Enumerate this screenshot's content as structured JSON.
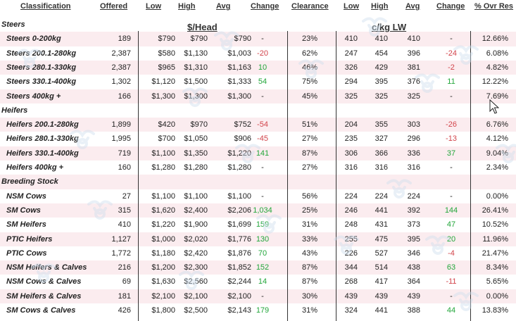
{
  "headers": {
    "classification": "Classification",
    "offered": "Offered",
    "low": "Low",
    "high": "High",
    "avg": "Avg",
    "change": "Change",
    "clearance": "Clearance",
    "low2": "Low",
    "high2": "High",
    "avg2": "Avg",
    "change2": "Change",
    "ovr_res": "% Ovr Res"
  },
  "units": {
    "head": "$/Head",
    "lw": "c/kg LW"
  },
  "rows": [
    {
      "type": "section",
      "label": "Steers"
    },
    {
      "type": "data",
      "name": "Steers 0-200kg",
      "offered": "189",
      "low": "$790",
      "high": "$790",
      "avg": "$790",
      "change": "-",
      "change_sign": "none",
      "clearance": "23%",
      "low2": "410",
      "high2": "410",
      "avg2": "410",
      "change2": "-",
      "change2_sign": "none",
      "ovr": "12.66%"
    },
    {
      "type": "data",
      "name": "Steers 200.1-280kg",
      "offered": "2,387",
      "low": "$580",
      "high": "$1,130",
      "avg": "$1,003",
      "change": "-20",
      "change_sign": "neg",
      "clearance": "62%",
      "low2": "247",
      "high2": "454",
      "avg2": "396",
      "change2": "-24",
      "change2_sign": "neg",
      "ovr": "6.08%"
    },
    {
      "type": "data",
      "name": "Steers 280.1-330kg",
      "offered": "2,387",
      "low": "$965",
      "high": "$1,310",
      "avg": "$1,163",
      "change": "10",
      "change_sign": "pos",
      "clearance": "46%",
      "low2": "326",
      "high2": "429",
      "avg2": "381",
      "change2": "-2",
      "change2_sign": "neg",
      "ovr": "4.82%"
    },
    {
      "type": "data",
      "name": "Steers 330.1-400kg",
      "offered": "1,302",
      "low": "$1,120",
      "high": "$1,500",
      "avg": "$1,333",
      "change": "54",
      "change_sign": "pos",
      "clearance": "75%",
      "low2": "294",
      "high2": "395",
      "avg2": "376",
      "change2": "11",
      "change2_sign": "pos",
      "ovr": "12.22%"
    },
    {
      "type": "data",
      "name": "Steers 400kg +",
      "offered": "166",
      "low": "$1,300",
      "high": "$1,300",
      "avg": "$1,300",
      "change": "-",
      "change_sign": "none",
      "clearance": "45%",
      "low2": "325",
      "high2": "325",
      "avg2": "325",
      "change2": "-",
      "change2_sign": "none",
      "ovr": "7.69%"
    },
    {
      "type": "section",
      "label": "Heifers"
    },
    {
      "type": "data",
      "name": "Heifers 200.1-280kg",
      "offered": "1,899",
      "low": "$420",
      "high": "$970",
      "avg": "$752",
      "change": "-54",
      "change_sign": "neg",
      "clearance": "51%",
      "low2": "204",
      "high2": "355",
      "avg2": "303",
      "change2": "-26",
      "change2_sign": "neg",
      "ovr": "6.76%"
    },
    {
      "type": "data",
      "name": "Heifers 280.1-330kg",
      "offered": "1,995",
      "low": "$700",
      "high": "$1,050",
      "avg": "$906",
      "change": "-45",
      "change_sign": "neg",
      "clearance": "27%",
      "low2": "235",
      "high2": "327",
      "avg2": "296",
      "change2": "-13",
      "change2_sign": "neg",
      "ovr": "4.12%"
    },
    {
      "type": "data",
      "name": "Heifers 330.1-400kg",
      "offered": "719",
      "low": "$1,100",
      "high": "$1,350",
      "avg": "$1,220",
      "change": "141",
      "change_sign": "pos",
      "clearance": "87%",
      "low2": "306",
      "high2": "366",
      "avg2": "336",
      "change2": "37",
      "change2_sign": "pos",
      "ovr": "9.04%"
    },
    {
      "type": "data",
      "name": "Heifers 400kg +",
      "offered": "160",
      "low": "$1,280",
      "high": "$1,280",
      "avg": "$1,280",
      "change": "-",
      "change_sign": "none",
      "clearance": "27%",
      "low2": "316",
      "high2": "316",
      "avg2": "316",
      "change2": "-",
      "change2_sign": "none",
      "ovr": "2.34%"
    },
    {
      "type": "section",
      "label": "Breeding Stock"
    },
    {
      "type": "data",
      "name": "NSM Cows",
      "offered": "27",
      "low": "$1,100",
      "high": "$1,100",
      "avg": "$1,100",
      "change": "-",
      "change_sign": "none",
      "clearance": "56%",
      "low2": "224",
      "high2": "224",
      "avg2": "224",
      "change2": "-",
      "change2_sign": "none",
      "ovr": "0.00%"
    },
    {
      "type": "data",
      "name": "SM Cows",
      "offered": "315",
      "low": "$1,620",
      "high": "$2,400",
      "avg": "$2,206",
      "change": "1,034",
      "change_sign": "pos",
      "clearance": "25%",
      "low2": "246",
      "high2": "441",
      "avg2": "392",
      "change2": "144",
      "change2_sign": "pos",
      "ovr": "26.41%"
    },
    {
      "type": "data",
      "name": "SM Heifers",
      "offered": "410",
      "low": "$1,220",
      "high": "$1,900",
      "avg": "$1,699",
      "change": "159",
      "change_sign": "pos",
      "clearance": "31%",
      "low2": "248",
      "high2": "431",
      "avg2": "373",
      "change2": "47",
      "change2_sign": "pos",
      "ovr": "10.52%"
    },
    {
      "type": "data",
      "name": "PTIC Heifers",
      "offered": "1,127",
      "low": "$1,000",
      "high": "$2,020",
      "avg": "$1,776",
      "change": "130",
      "change_sign": "pos",
      "clearance": "33%",
      "low2": "255",
      "high2": "475",
      "avg2": "395",
      "change2": "20",
      "change2_sign": "pos",
      "ovr": "11.96%"
    },
    {
      "type": "data",
      "name": "PTIC Cows",
      "offered": "1,772",
      "low": "$1,180",
      "high": "$2,420",
      "avg": "$1,876",
      "change": "70",
      "change_sign": "pos",
      "clearance": "43%",
      "low2": "226",
      "high2": "527",
      "avg2": "346",
      "change2": "-4",
      "change2_sign": "neg",
      "ovr": "21.47%"
    },
    {
      "type": "data",
      "name": "NSM Heifers & Calves",
      "offered": "216",
      "low": "$1,200",
      "high": "$2,300",
      "avg": "$1,852",
      "change": "152",
      "change_sign": "pos",
      "clearance": "87%",
      "low2": "344",
      "high2": "514",
      "avg2": "438",
      "change2": "63",
      "change2_sign": "pos",
      "ovr": "8.34%"
    },
    {
      "type": "data",
      "name": "NSM Cows & Calves",
      "offered": "69",
      "low": "$1,630",
      "high": "$2,560",
      "avg": "$2,244",
      "change": "14",
      "change_sign": "pos",
      "clearance": "87%",
      "low2": "268",
      "high2": "417",
      "avg2": "364",
      "change2": "-11",
      "change2_sign": "neg",
      "ovr": "5.65%"
    },
    {
      "type": "data",
      "name": "SM Heifers & Calves",
      "offered": "181",
      "low": "$2,100",
      "high": "$2,100",
      "avg": "$2,100",
      "change": "-",
      "change_sign": "none",
      "clearance": "30%",
      "low2": "439",
      "high2": "439",
      "avg2": "439",
      "change2": "-",
      "change2_sign": "none",
      "ovr": "0.00%"
    },
    {
      "type": "data",
      "name": "SM Cows & Calves",
      "offered": "426",
      "low": "$1,800",
      "high": "$2,500",
      "avg": "$2,143",
      "change": "179",
      "change_sign": "pos",
      "clearance": "31%",
      "low2": "324",
      "high2": "441",
      "avg2": "388",
      "change2": "44",
      "change2_sign": "pos",
      "ovr": "13.83%"
    }
  ],
  "colors": {
    "positive": "#22a63a",
    "negative": "#d2434a",
    "shade": "#fbecef",
    "watermark": "#cfe0ee"
  },
  "icons": {
    "watermark": "cattle-logo-watermark-icon",
    "cursor": "mouse-pointer-icon"
  }
}
